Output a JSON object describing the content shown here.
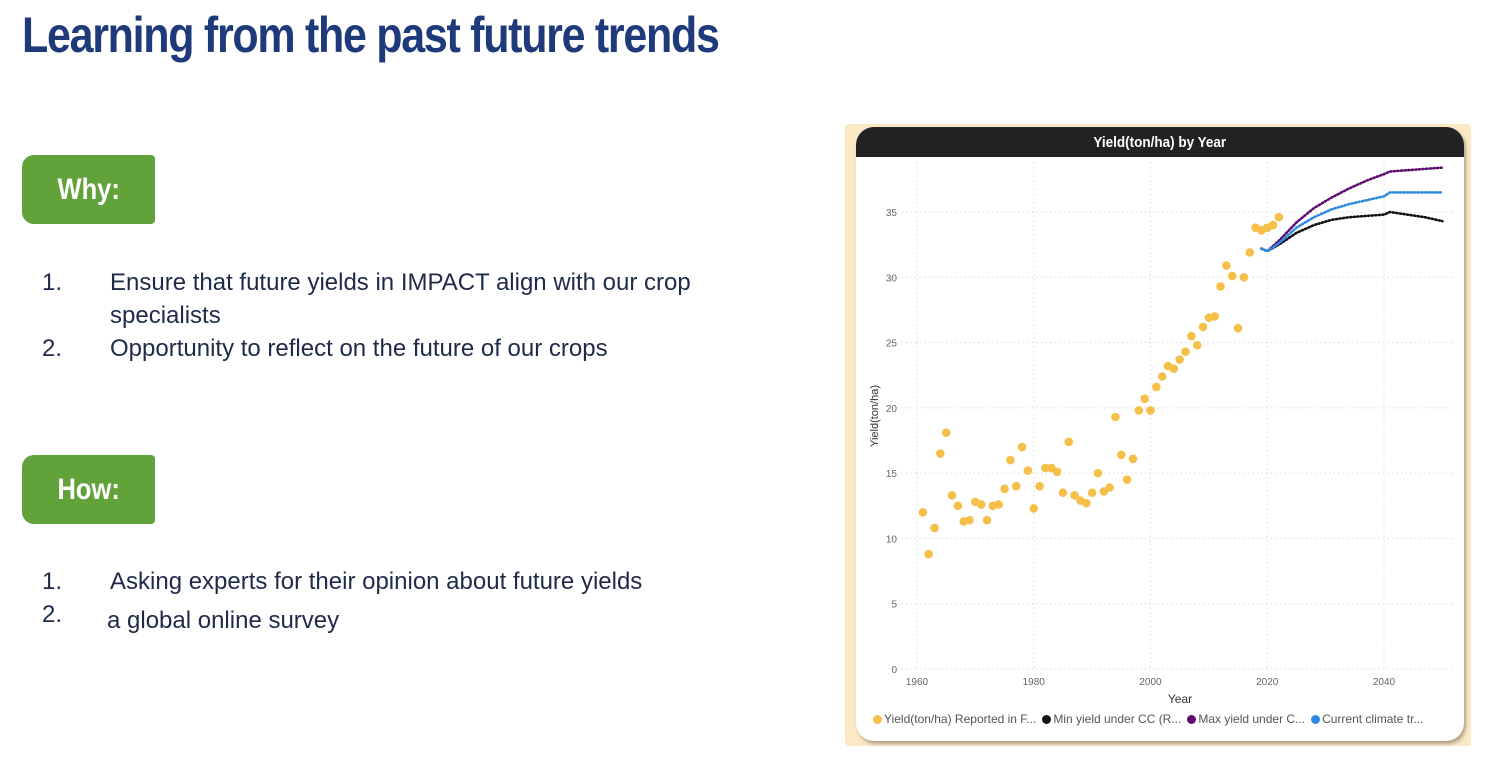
{
  "slide": {
    "title": "Learning from the past future trends",
    "sections": [
      {
        "label": "Why:",
        "items": [
          {
            "num": "1.",
            "text": "Ensure that future yields in IMPACT align with our crop specialists"
          },
          {
            "num": "2.",
            "text": "Opportunity to reflect on the future of our crops"
          }
        ]
      },
      {
        "label": "How:",
        "items": [
          {
            "num": "1.",
            "text": "Asking experts for their opinion about future yields"
          },
          {
            "num": "2.",
            "text": "a global online survey"
          }
        ]
      }
    ]
  },
  "colors": {
    "title": "#1f3a7a",
    "pill": "#62a23a",
    "reported": "#f5c04a",
    "min": "#111111",
    "max": "#5c0a6e",
    "current": "#2a8ae0"
  },
  "chart_data": {
    "type": "scatter",
    "title": "Yield(ton/ha) by Year",
    "xlabel": "Year",
    "ylabel": "Yield(ton/ha)",
    "xlim": [
      1958,
      2051
    ],
    "ylim": [
      0,
      37
    ],
    "xticks": [
      1960,
      1980,
      2000,
      2020,
      2040
    ],
    "yticks": [
      0,
      5,
      10,
      15,
      20,
      25,
      30,
      35
    ],
    "grid": true,
    "legend_position": "bottom",
    "series": [
      {
        "name": "Yield(ton/ha) Reported in F...",
        "kind": "scatter",
        "color": "#f5c04a",
        "x": [
          1961,
          1962,
          1963,
          1964,
          1965,
          1966,
          1967,
          1968,
          1969,
          1970,
          1971,
          1972,
          1973,
          1974,
          1975,
          1976,
          1977,
          1978,
          1979,
          1980,
          1981,
          1982,
          1983,
          1984,
          1985,
          1986,
          1987,
          1988,
          1989,
          1990,
          1991,
          1992,
          1993,
          1994,
          1995,
          1996,
          1997,
          1998,
          1999,
          2000,
          2001,
          2002,
          2003,
          2004,
          2005,
          2006,
          2007,
          2008,
          2009,
          2010,
          2011,
          2012,
          2013,
          2014,
          2015,
          2016,
          2017,
          2018,
          2019,
          2020,
          2021,
          2022
        ],
        "values": [
          12.0,
          8.8,
          10.8,
          16.5,
          18.1,
          13.3,
          12.5,
          11.3,
          11.4,
          12.8,
          12.6,
          11.4,
          12.5,
          12.6,
          13.8,
          16.0,
          14.0,
          17.0,
          15.2,
          12.3,
          14.0,
          15.4,
          15.4,
          15.1,
          13.5,
          17.4,
          13.3,
          12.9,
          12.7,
          13.5,
          15.0,
          13.6,
          13.9,
          19.3,
          16.4,
          14.5,
          16.1,
          19.8,
          20.7,
          19.8,
          21.6,
          22.4,
          23.2,
          23.0,
          23.7,
          24.3,
          25.5,
          24.8,
          26.2,
          26.9,
          27.0,
          29.3,
          30.9,
          30.1,
          26.1,
          30.0,
          31.9,
          33.8,
          33.6,
          33.8,
          34.0,
          34.6
        ]
      },
      {
        "name": "Min yield under CC (R...",
        "kind": "dotted-line",
        "color": "#111111",
        "x": [
          2019,
          2020,
          2022,
          2025,
          2028,
          2031,
          2034,
          2037,
          2040,
          2041,
          2044,
          2047,
          2050
        ],
        "values": [
          32.2,
          32.0,
          32.5,
          33.4,
          34.0,
          34.4,
          34.6,
          34.7,
          34.8,
          35.0,
          34.8,
          34.6,
          34.3
        ]
      },
      {
        "name": "Max yield under C...",
        "kind": "dotted-line",
        "color": "#5c0a6e",
        "x": [
          2019,
          2020,
          2022,
          2025,
          2028,
          2031,
          2034,
          2037,
          2040,
          2041,
          2044,
          2047,
          2050
        ],
        "values": [
          32.2,
          32.0,
          32.8,
          34.2,
          35.3,
          36.1,
          36.8,
          37.4,
          37.9,
          38.1,
          38.2,
          38.3,
          38.4
        ]
      },
      {
        "name": "Current climate tr...",
        "kind": "dotted-line",
        "color": "#2a8ae0",
        "x": [
          2019,
          2020,
          2022,
          2025,
          2028,
          2031,
          2034,
          2037,
          2040,
          2041,
          2044,
          2047,
          2050
        ],
        "values": [
          32.2,
          32.0,
          32.6,
          33.8,
          34.6,
          35.2,
          35.6,
          35.9,
          36.2,
          36.5,
          36.5,
          36.5,
          36.5
        ]
      }
    ]
  }
}
